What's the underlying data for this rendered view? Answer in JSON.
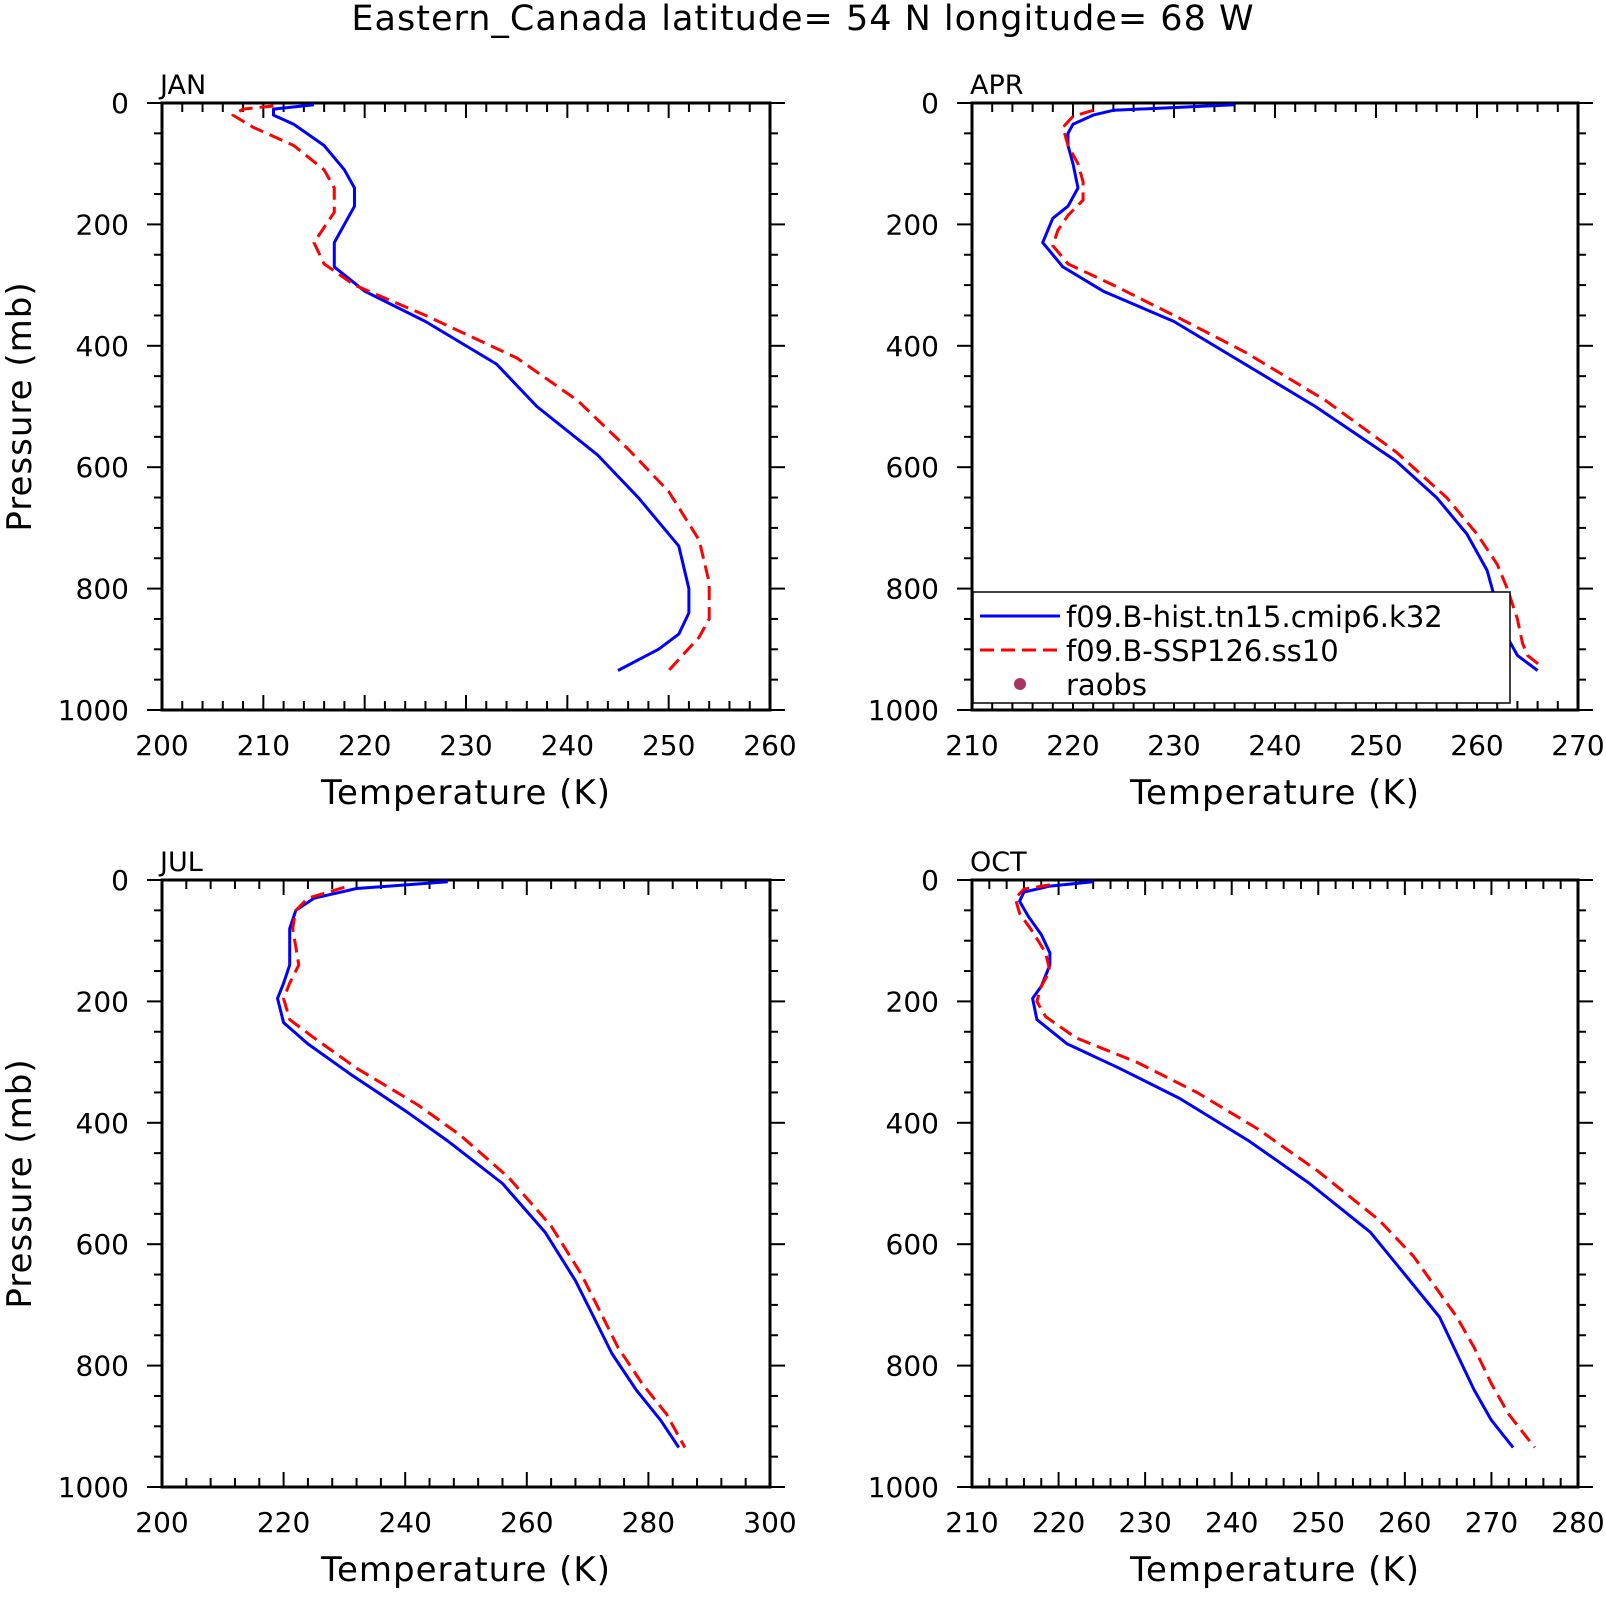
{
  "title": "Eastern_Canada  latitude= 54 N longitude= 68 W",
  "chart_data": [
    {
      "type": "line",
      "panel": "JAN",
      "xlabel": "Temperature (K)",
      "ylabel": "Pressure (mb)",
      "xlim": [
        200,
        260
      ],
      "ylim": [
        1000,
        0
      ],
      "xticks": [
        "200",
        "210",
        "220",
        "230",
        "240",
        "250",
        "260"
      ],
      "yticks": [
        "0",
        "200",
        "400",
        "600",
        "800",
        "1000"
      ],
      "legend": false,
      "series": [
        {
          "name": "f09.B-hist.tn15.cmip6.k32",
          "color": "#0000ff",
          "dash": "solid",
          "points": [
            [
              215,
              3
            ],
            [
              211,
              10
            ],
            [
              211,
              20
            ],
            [
              213,
              35
            ],
            [
              216,
              70
            ],
            [
              218,
              110
            ],
            [
              219,
              140
            ],
            [
              219,
              170
            ],
            [
              217,
              230
            ],
            [
              217,
              270
            ],
            [
              220,
              310
            ],
            [
              226,
              360
            ],
            [
              233,
              430
            ],
            [
              237,
              500
            ],
            [
              243,
              580
            ],
            [
              247,
              650
            ],
            [
              251,
              730
            ],
            [
              252,
              800
            ],
            [
              252,
              840
            ],
            [
              251,
              875
            ],
            [
              249,
              900
            ],
            [
              245,
              935
            ]
          ]
        },
        {
          "name": "f09.B-SSP126.ss10",
          "color": "#ff0000",
          "dash": "dashed",
          "points": [
            [
              211,
              5
            ],
            [
              208,
              10
            ],
            [
              207,
              20
            ],
            [
              209,
              40
            ],
            [
              213,
              70
            ],
            [
              216,
              110
            ],
            [
              217,
              140
            ],
            [
              217,
              180
            ],
            [
              215,
              230
            ],
            [
              216,
              265
            ],
            [
              219,
              300
            ],
            [
              226,
              350
            ],
            [
              235,
              420
            ],
            [
              241,
              490
            ],
            [
              246,
              570
            ],
            [
              250,
              640
            ],
            [
              253,
              720
            ],
            [
              254,
              790
            ],
            [
              254,
              850
            ],
            [
              253,
              880
            ],
            [
              250,
              935
            ]
          ]
        }
      ]
    },
    {
      "type": "line",
      "panel": "APR",
      "xlabel": "Temperature (K)",
      "ylabel": "",
      "xlim": [
        210,
        270
      ],
      "ylim": [
        1000,
        0
      ],
      "xticks": [
        "210",
        "220",
        "230",
        "240",
        "250",
        "260",
        "270"
      ],
      "yticks": [
        "0",
        "200",
        "400",
        "600",
        "800",
        "1000"
      ],
      "legend": true,
      "series": [
        {
          "name": "f09.B-hist.tn15.cmip6.k32",
          "color": "#0000ff",
          "dash": "solid",
          "points": [
            [
              236,
              3
            ],
            [
              224,
              12
            ],
            [
              222,
              20
            ],
            [
              220,
              35
            ],
            [
              219.5,
              50
            ],
            [
              219.5,
              70
            ],
            [
              220,
              100
            ],
            [
              220.5,
              140
            ],
            [
              219.5,
              170
            ],
            [
              218,
              190
            ],
            [
              217,
              230
            ],
            [
              219,
              270
            ],
            [
              223,
              310
            ],
            [
              230,
              360
            ],
            [
              236,
              420
            ],
            [
              244,
              500
            ],
            [
              252,
              590
            ],
            [
              256,
              650
            ],
            [
              259,
              710
            ],
            [
              261,
              770
            ],
            [
              262,
              830
            ],
            [
              263,
              880
            ],
            [
              264,
              910
            ],
            [
              266,
              935
            ]
          ]
        },
        {
          "name": "f09.B-SSP126.ss10",
          "color": "#ff0000",
          "dash": "dashed",
          "points": [
            [
              222,
              12
            ],
            [
              220,
              22
            ],
            [
              219,
              40
            ],
            [
              219.5,
              70
            ],
            [
              220.5,
              100
            ],
            [
              221,
              130
            ],
            [
              221,
              160
            ],
            [
              219.5,
              185
            ],
            [
              218.5,
              210
            ],
            [
              218,
              235
            ],
            [
              219.5,
              265
            ],
            [
              224,
              300
            ],
            [
              230,
              350
            ],
            [
              237,
              410
            ],
            [
              245,
              490
            ],
            [
              252,
              575
            ],
            [
              257,
              650
            ],
            [
              260,
              710
            ],
            [
              262,
              760
            ],
            [
              263,
              800
            ],
            [
              264,
              850
            ],
            [
              264.5,
              890
            ],
            [
              265,
              910
            ],
            [
              266.5,
              930
            ]
          ]
        },
        {
          "name": "raobs",
          "color": "#aa3366",
          "dash": "marker",
          "points": []
        }
      ]
    },
    {
      "type": "line",
      "panel": "JUL",
      "xlabel": "Temperature (K)",
      "ylabel": "Pressure (mb)",
      "xlim": [
        200,
        300
      ],
      "ylim": [
        1000,
        0
      ],
      "xticks": [
        "200",
        "220",
        "240",
        "260",
        "280",
        "300"
      ],
      "yticks": [
        "0",
        "200",
        "400",
        "600",
        "800",
        "1000"
      ],
      "legend": false,
      "series": [
        {
          "name": "f09.B-hist.tn15.cmip6.k32",
          "color": "#0000ff",
          "dash": "solid",
          "points": [
            [
              247,
              3
            ],
            [
              232,
              14
            ],
            [
              225,
              30
            ],
            [
              222,
              50
            ],
            [
              221,
              80
            ],
            [
              221,
              110
            ],
            [
              221,
              140
            ],
            [
              220,
              170
            ],
            [
              219,
              195
            ],
            [
              220,
              235
            ],
            [
              224,
              270
            ],
            [
              231,
              320
            ],
            [
              240,
              380
            ],
            [
              247,
              430
            ],
            [
              256,
              500
            ],
            [
              263,
              580
            ],
            [
              268,
              660
            ],
            [
              271,
              720
            ],
            [
              274,
              780
            ],
            [
              278,
              840
            ],
            [
              282,
              890
            ],
            [
              285,
              935
            ]
          ]
        },
        {
          "name": "f09.B-SSP126.ss10",
          "color": "#ff0000",
          "dash": "dashed",
          "points": [
            [
              230,
              12
            ],
            [
              224,
              30
            ],
            [
              222,
              50
            ],
            [
              221.5,
              80
            ],
            [
              222,
              110
            ],
            [
              222.5,
              140
            ],
            [
              221,
              170
            ],
            [
              220,
              195
            ],
            [
              221,
              230
            ],
            [
              225,
              260
            ],
            [
              232,
              310
            ],
            [
              242,
              370
            ],
            [
              249,
              420
            ],
            [
              257,
              490
            ],
            [
              264,
              570
            ],
            [
              269,
              650
            ],
            [
              272,
              710
            ],
            [
              275,
              770
            ],
            [
              279,
              830
            ],
            [
              283,
              880
            ],
            [
              286,
              935
            ]
          ]
        }
      ]
    },
    {
      "type": "line",
      "panel": "OCT",
      "xlabel": "Temperature (K)",
      "ylabel": "",
      "xlim": [
        210,
        280
      ],
      "ylim": [
        1000,
        0
      ],
      "xticks": [
        "210",
        "220",
        "230",
        "240",
        "250",
        "260",
        "270",
        "280"
      ],
      "yticks": [
        "0",
        "200",
        "400",
        "600",
        "800",
        "1000"
      ],
      "legend": false,
      "series": [
        {
          "name": "f09.B-hist.tn15.cmip6.k32",
          "color": "#0000ff",
          "dash": "solid",
          "points": [
            [
              224,
              3
            ],
            [
              219,
              10
            ],
            [
              216,
              20
            ],
            [
              215.5,
              35
            ],
            [
              216.5,
              60
            ],
            [
              218,
              90
            ],
            [
              219,
              120
            ],
            [
              219,
              140
            ],
            [
              218,
              175
            ],
            [
              217,
              195
            ],
            [
              217.5,
              230
            ],
            [
              221,
              270
            ],
            [
              227,
              310
            ],
            [
              234,
              360
            ],
            [
              242,
              430
            ],
            [
              249,
              500
            ],
            [
              256,
              580
            ],
            [
              260,
              650
            ],
            [
              264,
              720
            ],
            [
              266,
              780
            ],
            [
              268,
              840
            ],
            [
              270,
              890
            ],
            [
              272.5,
              935
            ]
          ]
        },
        {
          "name": "f09.B-SSP126.ss10",
          "color": "#ff0000",
          "dash": "dashed",
          "points": [
            [
              219,
              8
            ],
            [
              216,
              15
            ],
            [
              215,
              30
            ],
            [
              215.5,
              55
            ],
            [
              217,
              85
            ],
            [
              218.5,
              120
            ],
            [
              219,
              150
            ],
            [
              218,
              175
            ],
            [
              217.5,
              200
            ],
            [
              218.5,
              225
            ],
            [
              222,
              260
            ],
            [
              229,
              300
            ],
            [
              236,
              350
            ],
            [
              243,
              410
            ],
            [
              250,
              480
            ],
            [
              257,
              560
            ],
            [
              261,
              620
            ],
            [
              264,
              680
            ],
            [
              266,
              720
            ],
            [
              268,
              770
            ],
            [
              270,
              830
            ],
            [
              272,
              880
            ],
            [
              275,
              935
            ]
          ]
        }
      ]
    }
  ]
}
